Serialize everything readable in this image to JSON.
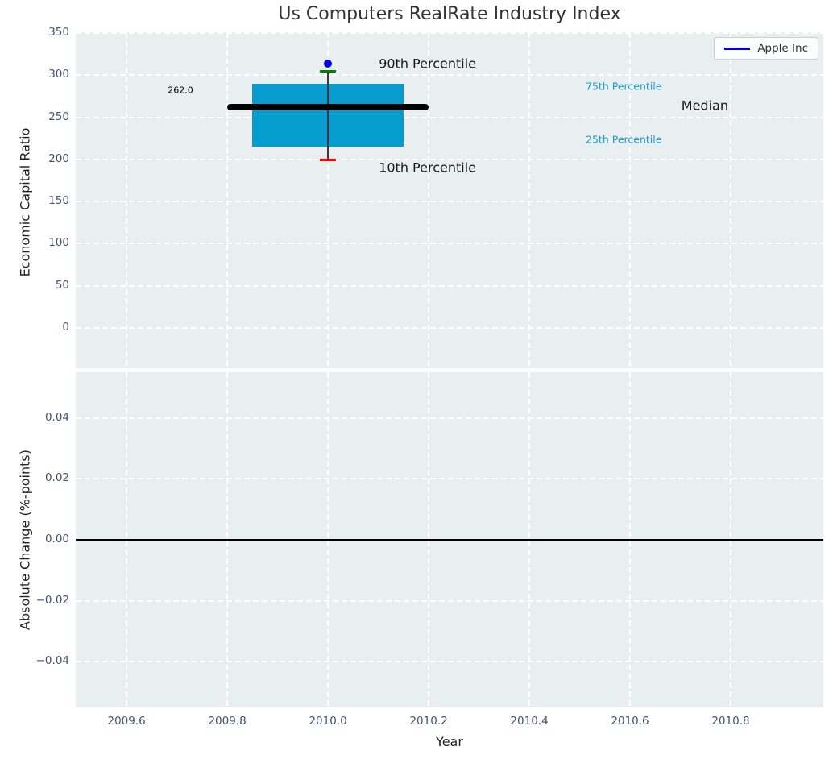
{
  "title": "Us Computers RealRate Industry Index",
  "colors": {
    "panel_bg": "#e9eef1",
    "grid": "#ffffff",
    "box_fill": "#079ccf",
    "median_line": "#000000",
    "cap_90th": "#007f00",
    "cap_10th": "#ff0000",
    "apple_point": "#0000e0",
    "tick_label": "#42526b",
    "percentile_label": "#1d9dce",
    "zero_line": "#000000"
  },
  "chart_data": [
    {
      "type": "boxplot",
      "panel": "top",
      "title": "Us Computers RealRate Industry Index",
      "ylabel": "Economic Capital Ratio",
      "xlim": [
        2009.499,
        2010.984
      ],
      "ylim": [
        -48,
        351
      ],
      "grid": "white dashed",
      "xticks": {
        "values": [
          2009.6,
          2009.8,
          2010.0,
          2010.2,
          2010.4,
          2010.6,
          2010.8
        ],
        "labels": []
      },
      "yticks": {
        "values": [
          350,
          300,
          250,
          200,
          150,
          100,
          50,
          0
        ],
        "labels": [
          "350",
          "300",
          "250",
          "200",
          "150",
          "100",
          "50",
          "0"
        ]
      },
      "box": {
        "x": 2010.0,
        "p10": 199,
        "p25": 215,
        "median": 262,
        "p75": 290,
        "p90": 305,
        "box_halfwidth": 0.15,
        "median_halfwidth": 0.2
      },
      "points": [
        {
          "name": "Apple Inc",
          "x": 2010.0,
          "y": 314
        }
      ],
      "annotations": [
        {
          "text": "262.0",
          "x": 2009.707,
          "y": 282,
          "align": "center",
          "size": 11,
          "color": "#000000"
        },
        {
          "text": "90th Percentile",
          "x": 2010.101,
          "y": 314,
          "align": "left",
          "size": 16,
          "color": "#1a1a1a"
        },
        {
          "text": "10th Percentile",
          "x": 2010.101,
          "y": 190,
          "align": "left",
          "size": 16,
          "color": "#1a1a1a"
        },
        {
          "text": "75th Percentile",
          "x": 2010.512,
          "y": 287,
          "align": "left",
          "size": 12.5,
          "color": "#1d9dce"
        },
        {
          "text": "25th Percentile",
          "x": 2010.512,
          "y": 224,
          "align": "left",
          "size": 12.5,
          "color": "#1d9dce"
        },
        {
          "text": "Median",
          "x": 2010.702,
          "y": 264,
          "align": "left",
          "size": 16,
          "color": "#1a1a1a"
        }
      ],
      "legend": {
        "label": "Apple Inc",
        "position": "upper right",
        "line_color": "#0000e0"
      }
    },
    {
      "type": "line",
      "panel": "bottom",
      "ylabel": "Absolute Change (%-points)",
      "xlabel": "Year",
      "xlim": [
        2009.499,
        2010.984
      ],
      "ylim": [
        -0.055,
        0.055
      ],
      "grid": "white dashed",
      "xticks": {
        "values": [
          2009.6,
          2009.8,
          2010.0,
          2010.2,
          2010.4,
          2010.6,
          2010.8
        ],
        "labels": [
          "2009.6",
          "2009.8",
          "2010.0",
          "2010.2",
          "2010.4",
          "2010.6",
          "2010.8"
        ]
      },
      "yticks": {
        "values": [
          0.04,
          0.02,
          0,
          -0.02,
          -0.04
        ],
        "labels": [
          "0.04",
          "0.02",
          "0.00",
          "−0.02",
          "−0.04"
        ]
      },
      "zero_line": 0,
      "series": []
    }
  ]
}
